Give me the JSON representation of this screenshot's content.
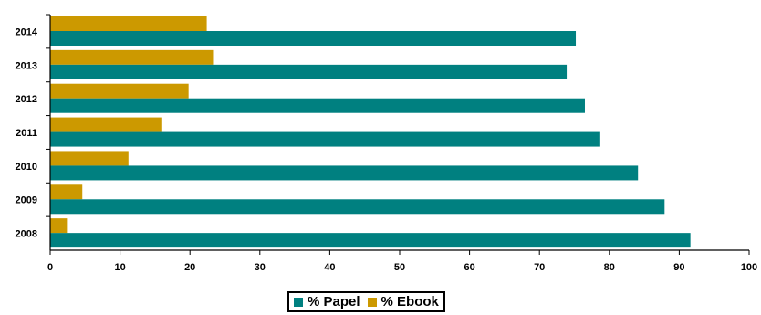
{
  "chart_data": {
    "type": "bar",
    "orientation": "horizontal",
    "categories": [
      "2014",
      "2013",
      "2012",
      "2011",
      "2010",
      "2009",
      "2008"
    ],
    "series": [
      {
        "name": "% Ebook",
        "color": "#cc9900",
        "values": [
          22.4,
          23.3,
          19.8,
          15.9,
          11.2,
          4.6,
          2.4
        ]
      },
      {
        "name": "% Papel",
        "color": "#008080",
        "values": [
          75.2,
          73.9,
          76.5,
          78.7,
          84.1,
          87.9,
          91.6
        ]
      }
    ],
    "x_ticks": [
      "0",
      "10",
      "20",
      "30",
      "40",
      "50",
      "60",
      "70",
      "80",
      "90",
      "100"
    ],
    "xlim": [
      0,
      100
    ],
    "grid": false,
    "legend_position": "bottom",
    "legend_order": [
      "% Papel",
      "% Ebook"
    ]
  }
}
